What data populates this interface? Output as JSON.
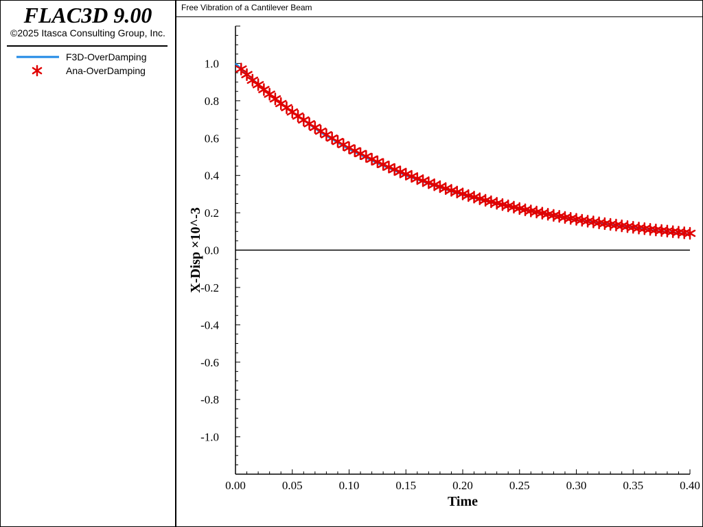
{
  "app": {
    "title": "FLAC3D 9.00",
    "copyright": "©2025 Itasca Consulting Group, Inc."
  },
  "legend": {
    "items": [
      {
        "label": "F3D-OverDamping",
        "symbol": "line",
        "color": "#1e88e5"
      },
      {
        "label": "Ana-OverDamping",
        "symbol": "asterisk",
        "color": "#e00000"
      }
    ]
  },
  "chart_data": {
    "type": "line",
    "title": "Free Vibration of a Cantilever Beam",
    "xlabel": "Time",
    "ylabel": "X-Disp ×10^-3",
    "xlim": [
      0.0,
      0.4
    ],
    "ylim": [
      -1.2,
      1.2
    ],
    "xticks": [
      "0.00",
      "0.05",
      "0.10",
      "0.15",
      "0.20",
      "0.25",
      "0.30",
      "0.35",
      "0.40"
    ],
    "yticks": [
      "1.0",
      "0.8",
      "0.6",
      "0.4",
      "0.2",
      "0.0",
      "-0.2",
      "-0.4",
      "-0.6",
      "-0.8",
      "-1.0"
    ],
    "zero_line": true,
    "series": [
      {
        "name": "F3D-OverDamping",
        "style": "line",
        "color": "#1e88e5",
        "x": [
          0.0,
          0.025,
          0.05,
          0.075,
          0.1,
          0.125,
          0.15,
          0.175,
          0.2,
          0.225,
          0.25,
          0.275,
          0.3,
          0.325,
          0.35,
          0.375,
          0.4
        ],
        "y": [
          1.0,
          0.86,
          0.74,
          0.63,
          0.54,
          0.465,
          0.4,
          0.345,
          0.295,
          0.255,
          0.22,
          0.19,
          0.16,
          0.14,
          0.12,
          0.1,
          0.085
        ]
      },
      {
        "name": "Ana-OverDamping",
        "style": "markers",
        "marker": "asterisk",
        "color": "#e00000",
        "x": [
          0.005,
          0.01,
          0.015,
          0.02,
          0.025,
          0.03,
          0.035,
          0.04,
          0.045,
          0.05,
          0.055,
          0.06,
          0.065,
          0.07,
          0.075,
          0.08,
          0.085,
          0.09,
          0.095,
          0.1,
          0.105,
          0.11,
          0.115,
          0.12,
          0.125,
          0.13,
          0.135,
          0.14,
          0.145,
          0.15,
          0.155,
          0.16,
          0.165,
          0.17,
          0.175,
          0.18,
          0.185,
          0.19,
          0.195,
          0.2,
          0.205,
          0.21,
          0.215,
          0.22,
          0.225,
          0.23,
          0.235,
          0.24,
          0.245,
          0.25,
          0.255,
          0.26,
          0.265,
          0.27,
          0.275,
          0.28,
          0.285,
          0.29,
          0.295,
          0.3,
          0.305,
          0.31,
          0.315,
          0.32,
          0.325,
          0.33,
          0.335,
          0.34,
          0.345,
          0.35,
          0.355,
          0.36,
          0.365,
          0.37,
          0.375,
          0.38,
          0.385,
          0.39,
          0.395,
          0.4
        ],
        "y": [
          0.97,
          0.94,
          0.91,
          0.886,
          0.86,
          0.835,
          0.81,
          0.785,
          0.763,
          0.74,
          0.718,
          0.697,
          0.677,
          0.657,
          0.637,
          0.618,
          0.6,
          0.582,
          0.565,
          0.548,
          0.532,
          0.517,
          0.502,
          0.487,
          0.473,
          0.459,
          0.445,
          0.432,
          0.419,
          0.407,
          0.395,
          0.383,
          0.372,
          0.361,
          0.35,
          0.34,
          0.33,
          0.32,
          0.311,
          0.301,
          0.292,
          0.284,
          0.275,
          0.267,
          0.259,
          0.251,
          0.244,
          0.237,
          0.23,
          0.223,
          0.216,
          0.21,
          0.204,
          0.198,
          0.192,
          0.186,
          0.181,
          0.175,
          0.17,
          0.165,
          0.16,
          0.155,
          0.151,
          0.146,
          0.142,
          0.138,
          0.134,
          0.13,
          0.126,
          0.122,
          0.118,
          0.115,
          0.111,
          0.108,
          0.105,
          0.102,
          0.099,
          0.096,
          0.093,
          0.09
        ]
      }
    ]
  }
}
